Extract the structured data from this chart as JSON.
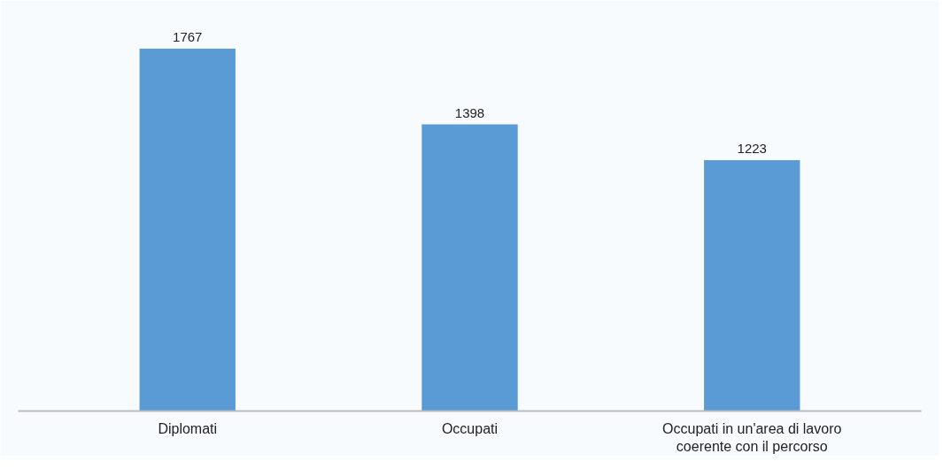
{
  "chart_data": {
    "type": "bar",
    "categories": [
      "Diplomati",
      "Occupati",
      "Occupati in un'area di lavoro\ncoerente con il percorso"
    ],
    "values": [
      1767,
      1398,
      1223
    ],
    "color": "#5b9bd5",
    "data_labels": true,
    "grid": false
  }
}
